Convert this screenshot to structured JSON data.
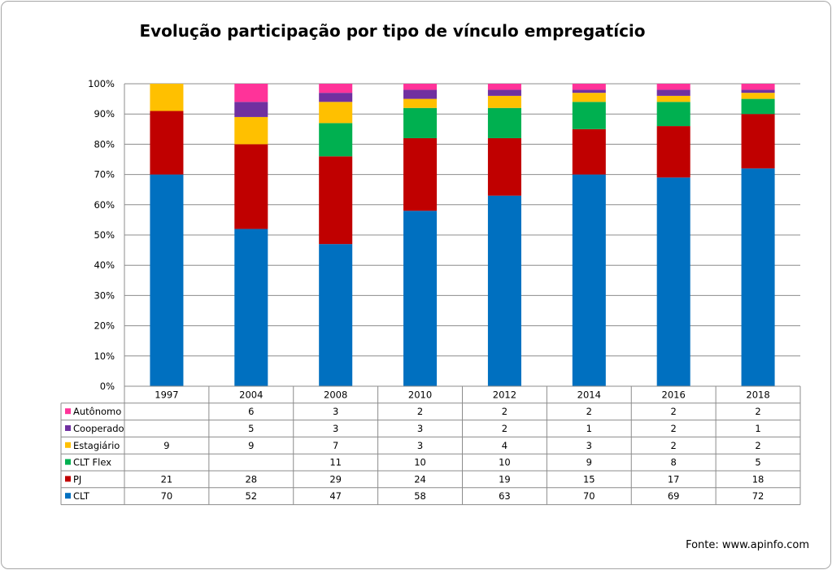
{
  "chart_data": {
    "type": "bar",
    "stacked": true,
    "normalized": true,
    "title": "Evolução participação por tipo de vínculo empregatício",
    "categories": [
      "1997",
      "2004",
      "2008",
      "2010",
      "2012",
      "2014",
      "2016",
      "2018"
    ],
    "yticks": [
      "0%",
      "10%",
      "20%",
      "30%",
      "40%",
      "50%",
      "60%",
      "70%",
      "80%",
      "90%",
      "100%"
    ],
    "ylim": [
      0,
      100
    ],
    "grid": true,
    "legend": "data-table-left",
    "series": [
      {
        "name": "CLT",
        "color": "#0070c0",
        "values": [
          70,
          52,
          47,
          58,
          63,
          70,
          69,
          72
        ]
      },
      {
        "name": "PJ",
        "color": "#c00000",
        "values": [
          21,
          28,
          29,
          24,
          19,
          15,
          17,
          18
        ]
      },
      {
        "name": "CLT Flex",
        "color": "#00b050",
        "values": [
          null,
          null,
          11,
          10,
          10,
          9,
          8,
          5
        ]
      },
      {
        "name": "Estagiário",
        "color": "#ffc000",
        "values": [
          9,
          9,
          7,
          3,
          4,
          3,
          2,
          2
        ]
      },
      {
        "name": "Cooperado",
        "color": "#7030a0",
        "values": [
          null,
          5,
          3,
          3,
          2,
          1,
          2,
          1
        ]
      },
      {
        "name": "Autônomo",
        "color": "#ff3399",
        "values": [
          null,
          6,
          3,
          2,
          2,
          2,
          2,
          2
        ]
      }
    ],
    "table_order": [
      "Autônomo",
      "Cooperado",
      "Estagiário",
      "CLT Flex",
      "PJ",
      "CLT"
    ]
  },
  "source": "Fonte: www.apinfo.com"
}
